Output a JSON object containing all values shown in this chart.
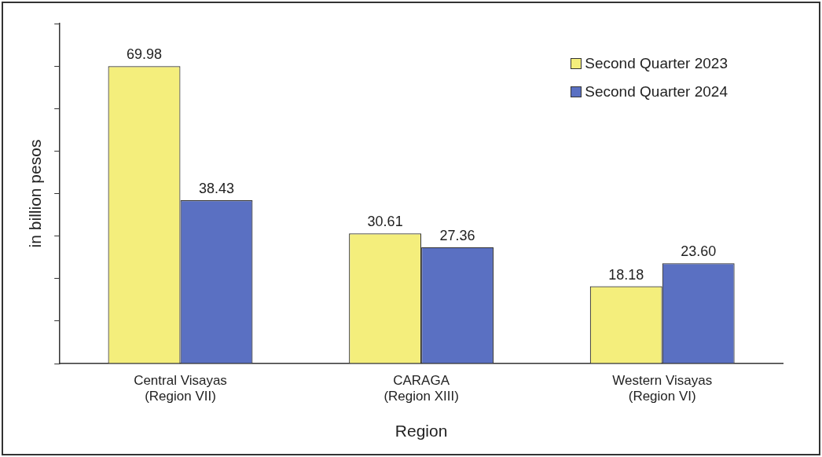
{
  "chart_data": {
    "type": "bar",
    "xlabel": "Region",
    "ylabel": "in billion pesos",
    "categories": [
      "Central Visayas\n(Region VII)",
      "CARAGA\n(Region XIII)",
      "Western Visayas\n(Region VI)"
    ],
    "series": [
      {
        "name": "Second Quarter 2023",
        "color": "#f4ee7c",
        "values": [
          69.98,
          30.61,
          18.18
        ],
        "value_labels": [
          "69.98",
          "30.61",
          "18.18"
        ]
      },
      {
        "name": "Second Quarter 2024",
        "color": "#5a70c2",
        "values": [
          38.43,
          27.36,
          23.6
        ],
        "value_labels": [
          "38.43",
          "27.36",
          "23.60"
        ]
      }
    ],
    "ylim": [
      0,
      80
    ],
    "yticks": [
      {
        "value": 0,
        "label": null
      },
      {
        "value": 10,
        "label": null
      },
      {
        "value": 20,
        "label": null
      },
      {
        "value": 30,
        "label": null
      },
      {
        "value": 40,
        "label": null
      },
      {
        "value": 50,
        "label": null
      },
      {
        "value": 60,
        "label": null
      },
      {
        "value": 70,
        "label": null
      },
      {
        "value": 80,
        "label": null
      }
    ],
    "tick_labels": "x",
    "grid": false,
    "legend": "top right"
  }
}
